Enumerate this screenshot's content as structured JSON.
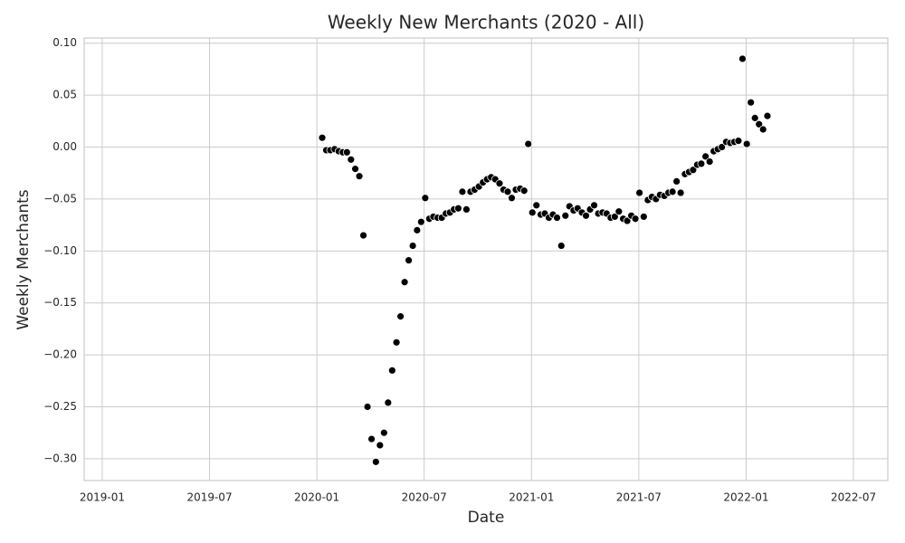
{
  "chart_data": {
    "type": "scatter",
    "title": "Weekly New Merchants (2020 - All)",
    "x_label": "Date",
    "y_label": "Weekly Merchants",
    "color": "#000000",
    "grid": true,
    "xlim": [
      2018.916,
      2022.66
    ],
    "ylim": [
      -0.321,
      0.105
    ],
    "xticks": [
      {
        "value": 2019.0,
        "label": "2019-01"
      },
      {
        "value": 2019.5,
        "label": "2019-07"
      },
      {
        "value": 2020.0,
        "label": "2020-01"
      },
      {
        "value": 2020.5,
        "label": "2020-07"
      },
      {
        "value": 2021.0,
        "label": "2021-01"
      },
      {
        "value": 2021.5,
        "label": "2021-07"
      },
      {
        "value": 2022.0,
        "label": "2022-01"
      },
      {
        "value": 2022.5,
        "label": "2022-07"
      }
    ],
    "yticks": [
      {
        "value": 0.1,
        "label": "0.10"
      },
      {
        "value": 0.05,
        "label": "0.05"
      },
      {
        "value": 0,
        "label": "0.00"
      },
      {
        "value": -0.05,
        "label": "−0.05"
      },
      {
        "value": -0.1,
        "label": "−0.10"
      },
      {
        "value": -0.15,
        "label": "−0.15"
      },
      {
        "value": -0.2,
        "label": "−0.20"
      },
      {
        "value": -0.25,
        "label": "−0.25"
      },
      {
        "value": -0.3,
        "label": "−0.30"
      }
    ],
    "x": [
      2020.025,
      2020.044,
      2020.063,
      2020.083,
      2020.102,
      2020.121,
      2020.14,
      2020.159,
      2020.179,
      2020.198,
      2020.217,
      2020.236,
      2020.255,
      2020.275,
      2020.294,
      2020.313,
      2020.332,
      2020.351,
      2020.371,
      2020.39,
      2020.409,
      2020.428,
      2020.447,
      2020.467,
      2020.486,
      2020.505,
      2020.524,
      2020.543,
      2020.563,
      2020.582,
      2020.601,
      2020.62,
      2020.639,
      2020.659,
      2020.678,
      2020.697,
      2020.716,
      2020.735,
      2020.755,
      2020.774,
      2020.793,
      2020.812,
      2020.831,
      2020.851,
      2020.87,
      2020.889,
      2020.908,
      2020.927,
      2020.947,
      2020.966,
      2020.985,
      2021.004,
      2021.023,
      2021.043,
      2021.062,
      2021.081,
      2021.1,
      2021.119,
      2021.139,
      2021.158,
      2021.177,
      2021.196,
      2021.215,
      2021.235,
      2021.254,
      2021.273,
      2021.292,
      2021.311,
      2021.331,
      2021.35,
      2021.369,
      2021.388,
      2021.407,
      2021.427,
      2021.446,
      2021.465,
      2021.484,
      2021.503,
      2021.523,
      2021.542,
      2021.561,
      2021.58,
      2021.599,
      2021.619,
      2021.638,
      2021.657,
      2021.676,
      2021.695,
      2021.715,
      2021.734,
      2021.753,
      2021.772,
      2021.791,
      2021.811,
      2021.83,
      2021.849,
      2021.868,
      2021.887,
      2021.907,
      2021.926,
      2021.945,
      2021.964,
      2021.983,
      2022.003,
      2022.022,
      2022.041,
      2022.06,
      2022.079,
      2022.099
    ],
    "values": [
      0.009,
      -0.003,
      -0.003,
      -0.002,
      -0.004,
      -0.005,
      -0.005,
      -0.012,
      -0.021,
      -0.028,
      -0.085,
      -0.25,
      -0.281,
      -0.303,
      -0.287,
      -0.275,
      -0.246,
      -0.215,
      -0.188,
      -0.163,
      -0.13,
      -0.109,
      -0.095,
      -0.08,
      -0.072,
      -0.049,
      -0.069,
      -0.067,
      -0.068,
      -0.068,
      -0.064,
      -0.063,
      -0.06,
      -0.059,
      -0.043,
      -0.06,
      -0.043,
      -0.041,
      -0.038,
      -0.034,
      -0.031,
      -0.029,
      -0.031,
      -0.035,
      -0.041,
      -0.043,
      -0.049,
      -0.041,
      -0.04,
      -0.042,
      0.003,
      -0.063,
      -0.056,
      -0.065,
      -0.064,
      -0.068,
      -0.065,
      -0.068,
      -0.095,
      -0.066,
      -0.057,
      -0.061,
      -0.059,
      -0.063,
      -0.066,
      -0.06,
      -0.056,
      -0.064,
      -0.063,
      -0.064,
      -0.068,
      -0.067,
      -0.062,
      -0.069,
      -0.071,
      -0.066,
      -0.069,
      -0.044,
      -0.067,
      -0.051,
      -0.048,
      -0.05,
      -0.046,
      -0.047,
      -0.044,
      -0.043,
      -0.033,
      -0.044,
      -0.026,
      -0.024,
      -0.022,
      -0.017,
      -0.016,
      -0.009,
      -0.014,
      -0.004,
      -0.002,
      0.0,
      0.005,
      0.004,
      0.005,
      0.006,
      0.085,
      0.003,
      0.043,
      0.028,
      0.022,
      0.017,
      0.03
    ]
  }
}
